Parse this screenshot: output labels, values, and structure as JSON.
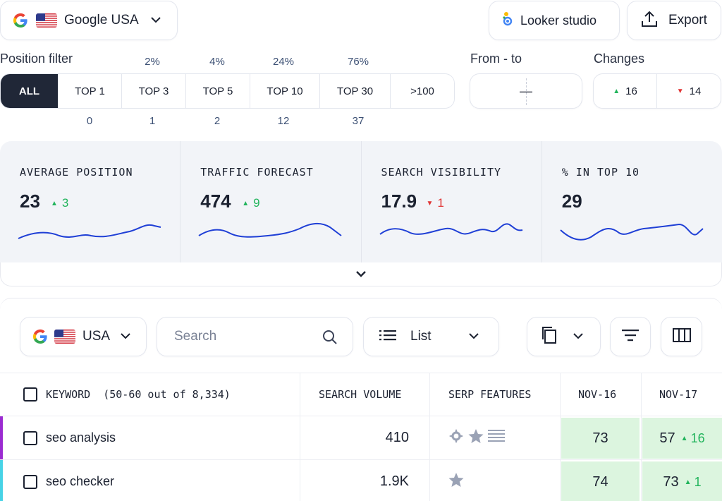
{
  "location": {
    "label": "Google USA"
  },
  "actions": {
    "looker": "Looker studio",
    "export": "Export"
  },
  "position_filter": {
    "label": "Position filter",
    "tabs": [
      {
        "label": "ALL",
        "percent": "",
        "count": ""
      },
      {
        "label": "TOP 1",
        "percent": "",
        "count": "0"
      },
      {
        "label": "TOP 3",
        "percent": "2%",
        "count": "1"
      },
      {
        "label": "TOP 5",
        "percent": "4%",
        "count": "2"
      },
      {
        "label": "TOP 10",
        "percent": "24%",
        "count": "12"
      },
      {
        "label": "TOP 30",
        "percent": "76%",
        "count": "37"
      },
      {
        "label": ">100",
        "percent": "",
        "count": ""
      }
    ]
  },
  "from_to": {
    "label": "From - to",
    "value": "—"
  },
  "changes": {
    "label": "Changes",
    "up": "16",
    "down": "14"
  },
  "stats": [
    {
      "title": "AVERAGE POSITION",
      "value": "23",
      "delta": "3",
      "direction": "up"
    },
    {
      "title": "TRAFFIC FORECAST",
      "value": "474",
      "delta": "9",
      "direction": "up"
    },
    {
      "title": "SEARCH VISIBILITY",
      "value": "17.9",
      "delta": "1",
      "direction": "down"
    },
    {
      "title": "% IN TOP 10",
      "value": "29",
      "delta": "",
      "direction": ""
    }
  ],
  "toolbar": {
    "region": "USA",
    "search_placeholder": "Search",
    "view": "List"
  },
  "table": {
    "headers": {
      "keyword": "KEYWORD",
      "keyword_count": "(50-60 out of 8,334)",
      "volume": "SEARCH VOLUME",
      "serp": "SERP FEATURES",
      "date1": "NOV-16",
      "date2": "NOV-17"
    },
    "rows": [
      {
        "keyword": "seo analysis",
        "volume": "410",
        "pos1": "73",
        "pos2": "57",
        "delta": "16",
        "accent": "#9b2bd1"
      },
      {
        "keyword": "seo checker",
        "volume": "1.9K",
        "pos1": "74",
        "pos2": "73",
        "delta": "1",
        "accent": "#47d3e6"
      }
    ]
  },
  "colors": {
    "up": "#22b45c",
    "down": "#e13434",
    "spark": "#1f3fd6",
    "dark": "#202737"
  }
}
